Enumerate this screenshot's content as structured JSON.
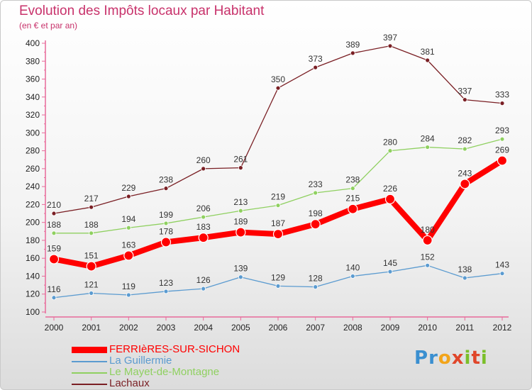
{
  "title": "Evolution des Impôts locaux par Habitant",
  "subtitle": "(en € et par an)",
  "logo_text": "Proxiti",
  "chart_data": {
    "type": "line",
    "title": "Evolution des Impôts locaux par Habitant",
    "subtitle": "(en € et par an)",
    "xlabel": "",
    "ylabel": "",
    "x": [
      2000,
      2001,
      2002,
      2003,
      2004,
      2005,
      2006,
      2007,
      2008,
      2009,
      2010,
      2011,
      2012
    ],
    "ylim": [
      100,
      400
    ],
    "yticks": [
      100,
      120,
      140,
      160,
      180,
      200,
      220,
      240,
      260,
      280,
      300,
      320,
      340,
      360,
      380,
      400
    ],
    "grid": false,
    "legend_position": "bottom-left",
    "series": [
      {
        "name": "Lachaux",
        "color": "#7a1f24",
        "values": [
          210,
          217,
          229,
          238,
          260,
          261,
          350,
          373,
          389,
          397,
          381,
          337,
          333
        ]
      },
      {
        "name": "Le Mayet-de-Montagne",
        "color": "#8fd060",
        "values": [
          188,
          188,
          194,
          199,
          206,
          213,
          219,
          233,
          238,
          280,
          284,
          282,
          293
        ]
      },
      {
        "name": "La Guillermie",
        "color": "#5b9bd0",
        "values": [
          116,
          121,
          119,
          123,
          126,
          139,
          129,
          128,
          140,
          145,
          152,
          138,
          143
        ]
      },
      {
        "name": "FERRIèRES-SUR-SICHON",
        "color": "#ff0000",
        "values": [
          159,
          151,
          163,
          178,
          183,
          189,
          187,
          198,
          215,
          226,
          180,
          243,
          269
        ]
      }
    ],
    "legend": [
      "FERRIèRES-SUR-SICHON",
      "La Guillermie",
      "Le Mayet-de-Montagne",
      "Lachaux"
    ]
  }
}
